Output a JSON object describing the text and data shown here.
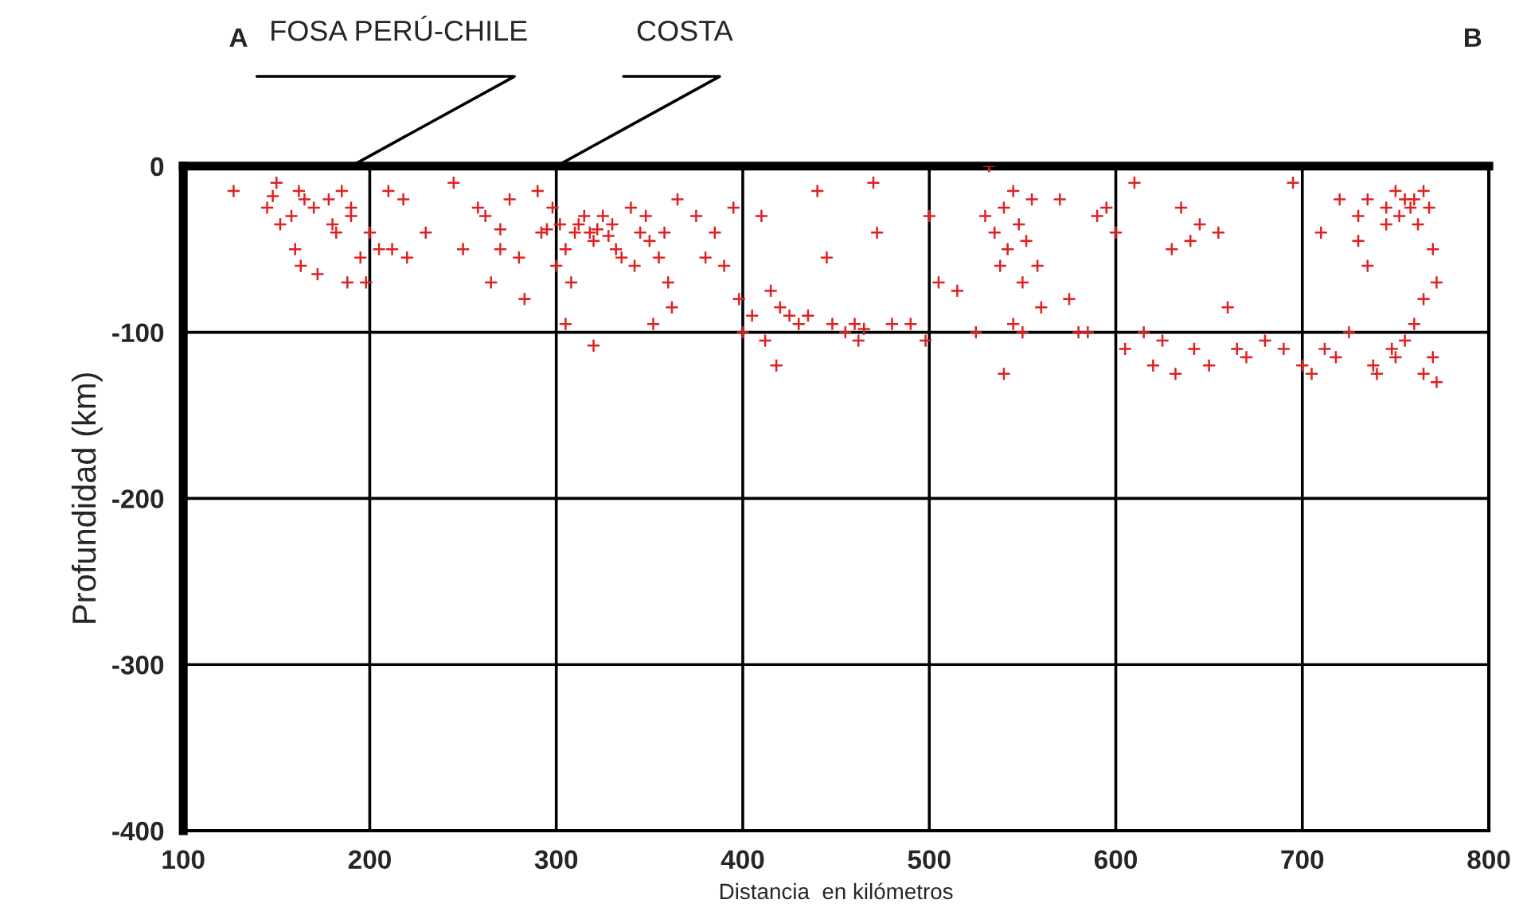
{
  "chart_data": {
    "type": "scatter",
    "xlabel": "Distancia  en kilómetros",
    "ylabel": "Profundidad (km)",
    "xlim": [
      100,
      800
    ],
    "ylim": [
      -400,
      0
    ],
    "xticks": [
      100,
      200,
      300,
      400,
      500,
      600,
      700,
      800
    ],
    "yticks": [
      0,
      -100,
      -200,
      -300,
      -400
    ],
    "grid": true,
    "marker": "cross",
    "annotations": [
      "A",
      "FOSA PERÚ-CHILE",
      "COSTA",
      "B"
    ],
    "series": [
      {
        "color": "#e02020",
        "x": [
          127,
          145,
          150,
          148,
          152,
          158,
          162,
          165,
          160,
          163,
          170,
          178,
          180,
          182,
          185,
          190,
          190,
          195,
          200,
          172,
          188,
          198,
          205,
          210,
          212,
          218,
          220,
          230,
          245,
          250,
          258,
          262,
          270,
          275,
          280,
          265,
          283,
          270,
          290,
          292,
          295,
          298,
          300,
          302,
          305,
          308,
          310,
          312,
          315,
          318,
          320,
          322,
          325,
          328,
          330,
          332,
          335,
          340,
          342,
          345,
          348,
          350,
          355,
          358,
          360,
          362,
          352,
          320,
          305,
          365,
          375,
          380,
          385,
          395,
          390,
          398,
          400,
          405,
          410,
          412,
          418,
          415,
          420,
          425,
          430,
          435,
          440,
          445,
          448,
          455,
          460,
          462,
          465,
          470,
          472,
          480,
          490,
          498,
          500,
          505,
          515,
          525,
          530,
          532,
          535,
          538,
          540,
          542,
          545,
          548,
          550,
          552,
          555,
          558,
          545,
          550,
          540,
          560,
          570,
          575,
          580,
          585,
          590,
          595,
          600,
          605,
          610,
          615,
          620,
          625,
          630,
          632,
          635,
          640,
          642,
          645,
          650,
          655,
          660,
          665,
          670,
          680,
          690,
          695,
          700,
          705,
          710,
          712,
          718,
          720,
          725,
          730,
          735,
          738,
          740,
          745,
          748,
          750,
          752,
          755,
          758,
          760,
          762,
          765,
          768,
          770,
          772,
          765,
          760,
          770,
          772,
          765,
          755,
          750,
          745,
          735,
          730
        ],
        "values": [
          -15,
          -25,
          -10,
          -18,
          -35,
          -30,
          -15,
          -20,
          -50,
          -60,
          -25,
          -20,
          -35,
          -40,
          -15,
          -30,
          -25,
          -55,
          -40,
          -65,
          -70,
          -70,
          -50,
          -15,
          -50,
          -20,
          -55,
          -40,
          -10,
          -50,
          -25,
          -30,
          -38,
          -20,
          -55,
          -70,
          -80,
          -50,
          -15,
          -40,
          -38,
          -25,
          -60,
          -35,
          -50,
          -70,
          -40,
          -35,
          -30,
          -40,
          -45,
          -38,
          -30,
          -42,
          -35,
          -50,
          -55,
          -25,
          -60,
          -40,
          -30,
          -45,
          -55,
          -40,
          -70,
          -85,
          -95,
          -108,
          -95,
          -20,
          -30,
          -55,
          -40,
          -25,
          -60,
          -80,
          -100,
          -90,
          -30,
          -105,
          -120,
          -75,
          -85,
          -90,
          -95,
          -90,
          -15,
          -55,
          -95,
          -100,
          -95,
          -105,
          -98,
          -10,
          -40,
          -95,
          -95,
          -105,
          -30,
          -70,
          -75,
          -100,
          -30,
          0,
          -40,
          -60,
          -25,
          -50,
          -15,
          -35,
          -70,
          -45,
          -20,
          -60,
          -95,
          -100,
          -125,
          -85,
          -20,
          -80,
          -100,
          -100,
          -30,
          -25,
          -40,
          -110,
          -10,
          -100,
          -120,
          -105,
          -50,
          -125,
          -25,
          -45,
          -110,
          -35,
          -120,
          -40,
          -85,
          -110,
          -115,
          -105,
          -110,
          -10,
          -120,
          -125,
          -40,
          -110,
          -115,
          -20,
          -100,
          -30,
          -20,
          -120,
          -125,
          -25,
          -110,
          -15,
          -30,
          -20,
          -25,
          -20,
          -35,
          -15,
          -25,
          -50,
          -70,
          -80,
          -95,
          -115,
          -130,
          -125,
          -105,
          -115,
          -35,
          -60,
          -45
        ]
      }
    ]
  }
}
